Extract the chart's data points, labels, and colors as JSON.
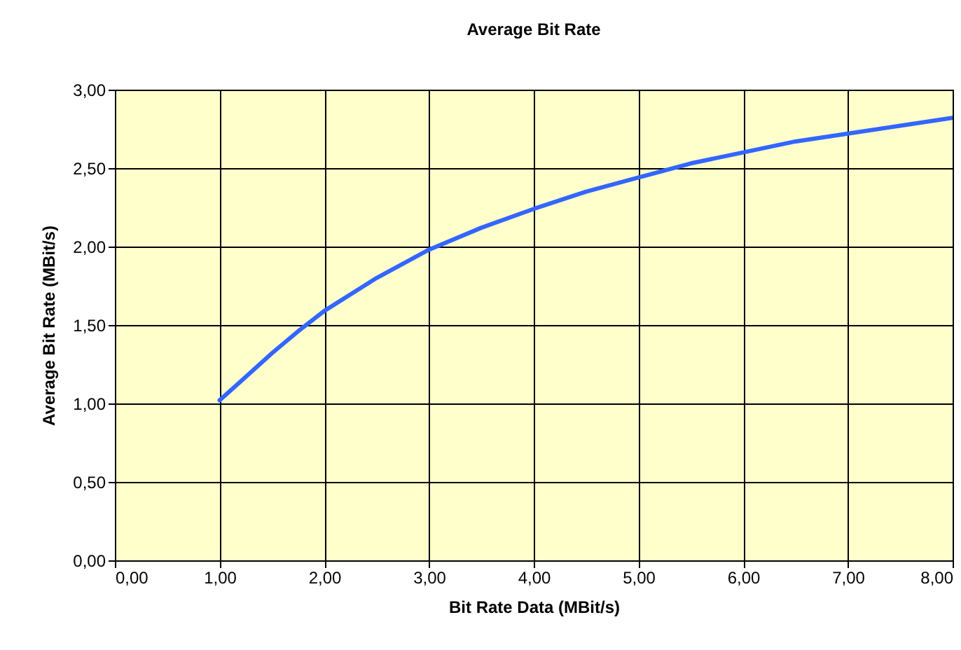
{
  "chart_data": {
    "type": "line",
    "title": "Average Bit Rate",
    "xlabel": "Bit Rate Data (MBit/s)",
    "ylabel": "Average Bit Rate (MBit/s)",
    "x": [
      1,
      1.25,
      1.5,
      1.75,
      2,
      2.5,
      2.75,
      3,
      3.5,
      4,
      4.5,
      5,
      5.5,
      6,
      6.5,
      7,
      7.5,
      8
    ],
    "series": [
      {
        "color": "#3366ff",
        "values": [
          1.02,
          1.17,
          1.32,
          1.46,
          1.59,
          1.8,
          1.89,
          1.98,
          2.12,
          2.24,
          2.35,
          2.44,
          2.53,
          2.6,
          2.67,
          2.72,
          2.77,
          2.82
        ]
      }
    ],
    "xlim": [
      0,
      8
    ],
    "ylim": [
      0,
      3
    ],
    "xticks": [
      {
        "value": 0,
        "label": "0,00"
      },
      {
        "value": 1,
        "label": "1,00"
      },
      {
        "value": 2,
        "label": "2,00"
      },
      {
        "value": 3,
        "label": "3,00"
      },
      {
        "value": 4,
        "label": "4,00"
      },
      {
        "value": 5,
        "label": "5,00"
      },
      {
        "value": 6,
        "label": "6,00"
      },
      {
        "value": 7,
        "label": "7,00"
      },
      {
        "value": 8,
        "label": "8,00"
      }
    ],
    "yticks": [
      {
        "value": 0,
        "label": "0,00"
      },
      {
        "value": 0.5,
        "label": "0,50"
      },
      {
        "value": 1,
        "label": "1,00"
      },
      {
        "value": 1.5,
        "label": "1,50"
      },
      {
        "value": 2,
        "label": "2,00"
      },
      {
        "value": 2.5,
        "label": "2,50"
      },
      {
        "value": 3,
        "label": "3,00"
      }
    ],
    "grid": true,
    "marker": "none",
    "line_style": "solid"
  }
}
